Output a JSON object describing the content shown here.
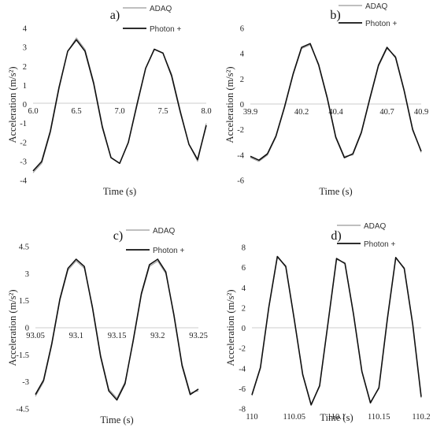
{
  "chart_data": [
    {
      "type": "line",
      "panel_label": "a)",
      "xlabel": "Time (s)",
      "ylabel": "Acceleration (m/s²)",
      "xlim": [
        6.0,
        8.0
      ],
      "ylim": [
        -4,
        4
      ],
      "x_ticks": [
        "6.0",
        "6.5",
        "7.0",
        "7.5",
        "8.0"
      ],
      "y_ticks": [
        "-4",
        "-3",
        "-2",
        "-1",
        "0",
        "1",
        "2",
        "3",
        "4"
      ],
      "legend_position": "top-right",
      "series": [
        {
          "name": "ADAQ",
          "color": "#999999",
          "x": [
            6.0,
            6.1,
            6.2,
            6.3,
            6.4,
            6.5,
            6.6,
            6.7,
            6.8,
            6.9,
            7.0,
            7.1,
            7.2,
            7.3,
            7.4,
            7.5,
            7.6,
            7.7,
            7.8,
            7.9,
            8.0
          ],
          "y": [
            -3.6,
            -3.1,
            -1.5,
            0.8,
            2.8,
            3.5,
            2.9,
            1.2,
            -1.1,
            -2.8,
            -3.1,
            -2.0,
            -0.1,
            1.9,
            2.9,
            2.7,
            1.6,
            -0.3,
            -2.1,
            -3.0,
            -1.0
          ]
        },
        {
          "name": "Photon +",
          "color": "#111111",
          "x": [
            6.0,
            6.1,
            6.2,
            6.3,
            6.4,
            6.5,
            6.6,
            6.7,
            6.8,
            6.9,
            7.0,
            7.1,
            7.2,
            7.3,
            7.4,
            7.5,
            7.6,
            7.7,
            7.8,
            7.9,
            8.0
          ],
          "y": [
            -3.5,
            -3.0,
            -1.4,
            0.9,
            2.8,
            3.4,
            2.8,
            1.1,
            -1.2,
            -2.8,
            -3.1,
            -2.0,
            0.0,
            1.9,
            2.9,
            2.7,
            1.5,
            -0.4,
            -2.1,
            -2.9,
            -1.1
          ]
        }
      ]
    },
    {
      "type": "line",
      "panel_label": "b)",
      "xlabel": "Time (s)",
      "ylabel": "Acceleration (m/s²)",
      "xlim": [
        39.9,
        40.9
      ],
      "ylim": [
        -6,
        6
      ],
      "x_ticks": [
        "39.9",
        "40.2",
        "40.4",
        "40.7",
        "40.9"
      ],
      "x_tick_values": [
        39.9,
        40.2,
        40.4,
        40.7,
        40.9
      ],
      "y_ticks": [
        "-6",
        "-4",
        "-2",
        "0",
        "2",
        "4",
        "6"
      ],
      "legend_position": "top-right",
      "series": [
        {
          "name": "ADAQ",
          "color": "#999999",
          "x": [
            39.9,
            39.95,
            40.0,
            40.05,
            40.1,
            40.15,
            40.2,
            40.25,
            40.3,
            40.35,
            40.4,
            40.45,
            40.5,
            40.55,
            40.6,
            40.65,
            40.7,
            40.75,
            40.8,
            40.85,
            40.9
          ],
          "y": [
            -4.2,
            -4.5,
            -4.0,
            -2.6,
            -0.3,
            2.3,
            4.4,
            4.7,
            3.2,
            0.6,
            -2.5,
            -4.1,
            -4.0,
            -2.3,
            0.4,
            3.0,
            4.4,
            3.8,
            1.2,
            -1.9,
            -3.8
          ]
        },
        {
          "name": "Photon +",
          "color": "#111111",
          "x": [
            39.9,
            39.95,
            40.0,
            40.05,
            40.1,
            40.15,
            40.2,
            40.25,
            40.3,
            40.35,
            40.4,
            40.45,
            40.5,
            40.55,
            40.6,
            40.65,
            40.7,
            40.75,
            40.8,
            40.85,
            40.9
          ],
          "y": [
            -4.1,
            -4.4,
            -3.9,
            -2.5,
            -0.2,
            2.4,
            4.5,
            4.8,
            3.1,
            0.5,
            -2.6,
            -4.2,
            -3.9,
            -2.2,
            0.5,
            3.1,
            4.5,
            3.7,
            1.1,
            -2.0,
            -3.7
          ]
        }
      ]
    },
    {
      "type": "line",
      "panel_label": "c)",
      "xlabel": "Time (s)",
      "ylabel": "Acceleration (m/s²)",
      "xlim": [
        93.05,
        93.25
      ],
      "ylim": [
        -4.5,
        4.5
      ],
      "x_ticks": [
        "93.05",
        "93.1",
        "93.15",
        "93.2",
        "93.25"
      ],
      "y_ticks": [
        "-4.5",
        "-3",
        "-1.5",
        "0",
        "1.5",
        "3",
        "4.5"
      ],
      "legend_position": "top-right",
      "series": [
        {
          "name": "ADAQ",
          "color": "#999999",
          "x": [
            93.05,
            93.06,
            93.07,
            93.08,
            93.09,
            93.1,
            93.11,
            93.12,
            93.13,
            93.14,
            93.15,
            93.16,
            93.17,
            93.18,
            93.19,
            93.2,
            93.21,
            93.22,
            93.23,
            93.24,
            93.25
          ],
          "y": [
            -3.8,
            -3.0,
            -1.0,
            1.5,
            3.2,
            3.7,
            3.3,
            1.2,
            -1.5,
            -3.4,
            -3.9,
            -3.0,
            -0.8,
            1.8,
            3.4,
            3.7,
            3.0,
            0.8,
            -2.0,
            -3.6,
            -3.5
          ]
        },
        {
          "name": "Photon +",
          "color": "#111111",
          "x": [
            93.05,
            93.06,
            93.07,
            93.08,
            93.09,
            93.1,
            93.11,
            93.12,
            93.13,
            93.14,
            93.15,
            93.16,
            93.17,
            93.18,
            93.19,
            93.2,
            93.21,
            93.22,
            93.23,
            93.24,
            93.25
          ],
          "y": [
            -3.7,
            -2.9,
            -0.9,
            1.6,
            3.3,
            3.8,
            3.4,
            1.1,
            -1.6,
            -3.5,
            -4.0,
            -3.1,
            -0.7,
            1.9,
            3.5,
            3.8,
            3.1,
            0.7,
            -2.1,
            -3.7,
            -3.4
          ]
        }
      ]
    },
    {
      "type": "line",
      "panel_label": "d)",
      "xlabel": "Time (s)",
      "ylabel": "Acceleration (m/s²)",
      "xlim": [
        110,
        110.2
      ],
      "ylim": [
        -8,
        8
      ],
      "x_ticks": [
        "110",
        "110.05",
        "110.1",
        "110.15",
        "110.2"
      ],
      "y_ticks": [
        "-8",
        "-6",
        "-4",
        "-2",
        "0",
        "2",
        "4",
        "6",
        "8"
      ],
      "legend_position": "top-right",
      "series": [
        {
          "name": "ADAQ",
          "color": "#999999",
          "x": [
            110.0,
            110.01,
            110.02,
            110.03,
            110.04,
            110.05,
            110.06,
            110.07,
            110.08,
            110.09,
            110.1,
            110.11,
            110.12,
            110.13,
            110.14,
            110.15,
            110.16,
            110.17,
            110.18,
            110.19,
            110.2
          ],
          "y": [
            -6.7,
            -4.0,
            2.0,
            7.0,
            6.2,
            1.0,
            -4.5,
            -7.5,
            -5.8,
            0.5,
            6.8,
            6.5,
            1.5,
            -4.2,
            -7.3,
            -6.0,
            0.8,
            6.9,
            6.0,
            0.5,
            -6.9
          ]
        },
        {
          "name": "Photon +",
          "color": "#111111",
          "x": [
            110.0,
            110.01,
            110.02,
            110.03,
            110.04,
            110.05,
            110.06,
            110.07,
            110.08,
            110.09,
            110.1,
            110.11,
            110.12,
            110.13,
            110.14,
            110.15,
            110.16,
            110.17,
            110.18,
            110.19,
            110.2
          ],
          "y": [
            -6.6,
            -3.9,
            2.1,
            7.1,
            6.1,
            0.9,
            -4.6,
            -7.6,
            -5.7,
            0.6,
            6.9,
            6.4,
            1.4,
            -4.3,
            -7.4,
            -5.9,
            0.9,
            7.0,
            5.9,
            0.4,
            -6.8
          ]
        }
      ]
    }
  ]
}
